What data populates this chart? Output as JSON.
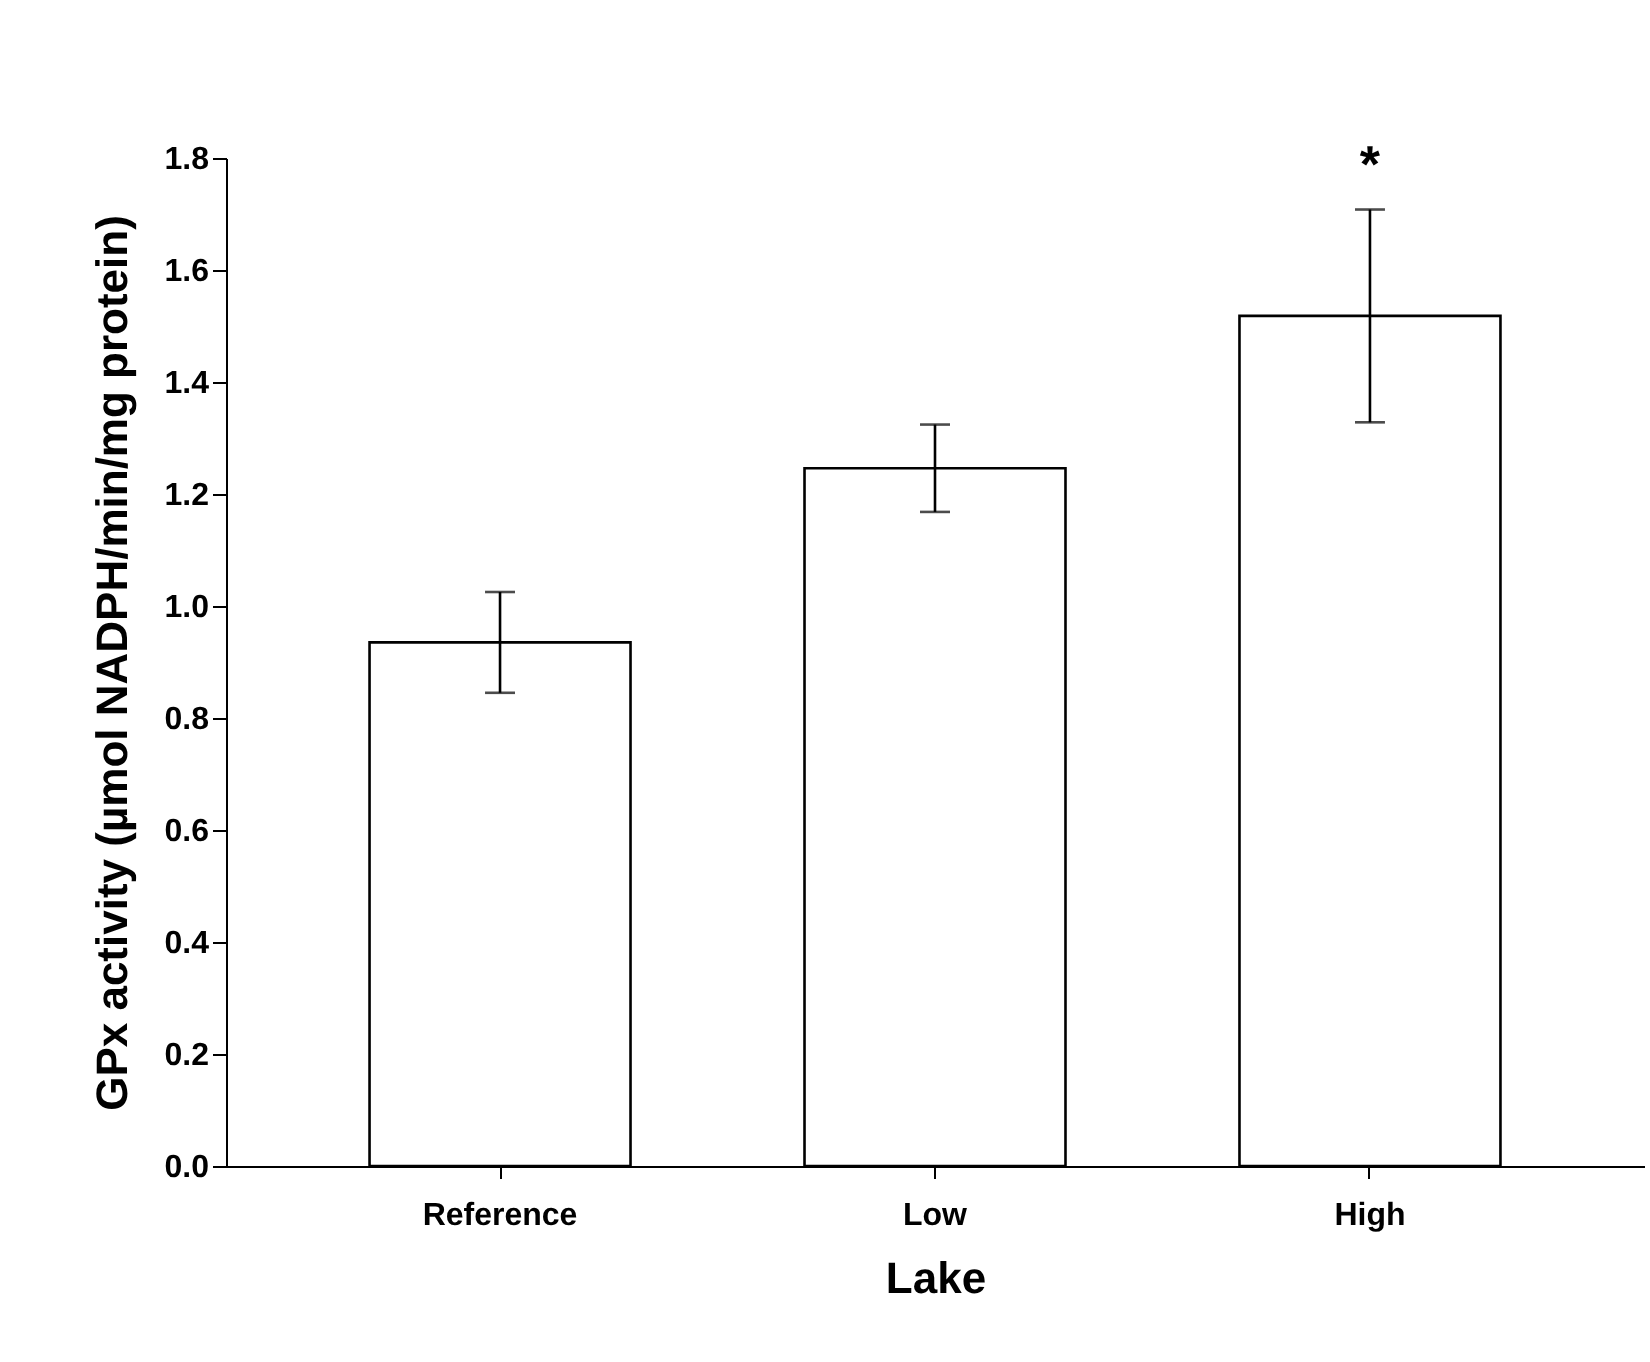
{
  "chart_data": {
    "type": "bar",
    "xlabel": "Lake",
    "ylabel": "GPx activity (µmol NADPH/min/mg protein)",
    "categories": [
      "Reference",
      "Low",
      "High"
    ],
    "values": [
      0.935,
      1.246,
      1.518
    ],
    "errors": [
      0.09,
      0.078,
      0.19
    ],
    "color": "#ffffff",
    "ylim": [
      0,
      1.8
    ],
    "yticks": [
      {
        "value": 0,
        "label": "0.0"
      },
      0.2,
      0.4,
      0.6,
      0.8,
      {
        "value": 1,
        "label": "1.0"
      },
      1.2,
      1.4,
      1.6,
      1.8
    ],
    "annotations": [
      {
        "text": "*",
        "x": "High",
        "y": 1.71
      }
    ]
  }
}
